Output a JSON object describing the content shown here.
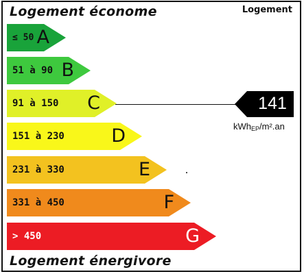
{
  "header": {
    "title_top": "Logement économe",
    "corner_label": "Logement"
  },
  "footer": {
    "title_bottom": "Logement énergivore"
  },
  "classes": [
    {
      "letter": "A",
      "range": "≤ 50",
      "color": "#19a33a",
      "text_color": "#111111"
    },
    {
      "letter": "B",
      "range": "51 à 90",
      "color": "#3ec93e",
      "text_color": "#111111"
    },
    {
      "letter": "C",
      "range": "91 à 150",
      "color": "#e0f028",
      "text_color": "#111111"
    },
    {
      "letter": "D",
      "range": "151 à 230",
      "color": "#f9f71a",
      "text_color": "#111111"
    },
    {
      "letter": "E",
      "range": "231 à 330",
      "color": "#f3c21f",
      "text_color": "#111111"
    },
    {
      "letter": "F",
      "range": "331 à 450",
      "color": "#f08a1c",
      "text_color": "#111111"
    },
    {
      "letter": "G",
      "range": "> 450",
      "color": "#ec1c24",
      "text_color": "#ffffff"
    }
  ],
  "indicator": {
    "value": "141",
    "unit_main": "kWh",
    "unit_sub": "EP",
    "unit_rest": "/m².an",
    "class": "C"
  }
}
